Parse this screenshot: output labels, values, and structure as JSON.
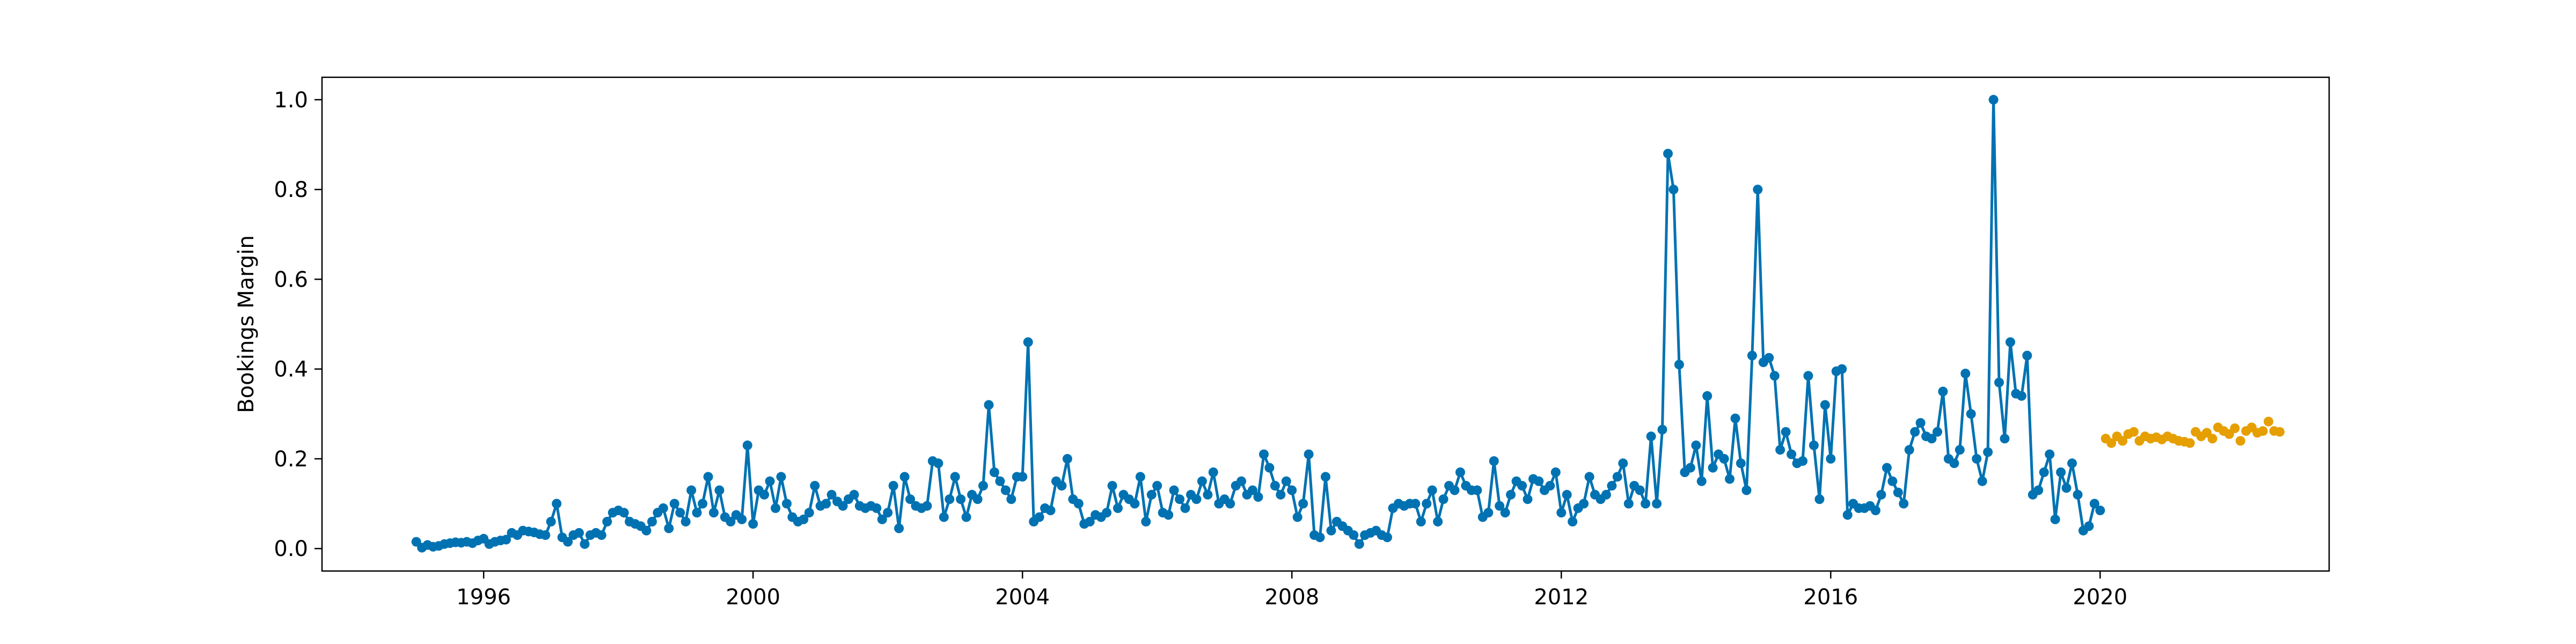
{
  "chart_data": {
    "type": "line",
    "title": "",
    "xlabel": "",
    "ylabel": "Bookings Margin",
    "xlim": [
      1993.6,
      2023.4
    ],
    "ylim": [
      -0.05,
      1.05
    ],
    "grid": false,
    "legend": "none",
    "x_ticks": [
      {
        "value": 1996,
        "label": "1996"
      },
      {
        "value": 2000,
        "label": "2000"
      },
      {
        "value": 2004,
        "label": "2004"
      },
      {
        "value": 2008,
        "label": "2008"
      },
      {
        "value": 2012,
        "label": "2012"
      },
      {
        "value": 2016,
        "label": "2016"
      },
      {
        "value": 2020,
        "label": "2020"
      }
    ],
    "y_ticks": [
      {
        "value": 0.0,
        "label": "0.0"
      },
      {
        "value": 0.2,
        "label": "0.2"
      },
      {
        "value": 0.4,
        "label": "0.4"
      },
      {
        "value": 0.6,
        "label": "0.6"
      },
      {
        "value": 0.8,
        "label": "0.8"
      },
      {
        "value": 1.0,
        "label": "1.0"
      }
    ],
    "series": [
      {
        "color": "#0072B2",
        "style": "line-with-markers",
        "x_start": 1995.0,
        "x_step_months": 1,
        "values": [
          0.015,
          0.002,
          0.008,
          0.004,
          0.006,
          0.01,
          0.012,
          0.014,
          0.013,
          0.015,
          0.012,
          0.018,
          0.022,
          0.01,
          0.015,
          0.018,
          0.02,
          0.035,
          0.03,
          0.04,
          0.038,
          0.036,
          0.032,
          0.03,
          0.06,
          0.1,
          0.025,
          0.015,
          0.03,
          0.035,
          0.01,
          0.03,
          0.035,
          0.03,
          0.06,
          0.08,
          0.085,
          0.08,
          0.06,
          0.055,
          0.05,
          0.04,
          0.06,
          0.08,
          0.09,
          0.045,
          0.1,
          0.08,
          0.06,
          0.13,
          0.08,
          0.1,
          0.16,
          0.08,
          0.13,
          0.07,
          0.06,
          0.075,
          0.065,
          0.23,
          0.055,
          0.13,
          0.12,
          0.15,
          0.09,
          0.16,
          0.1,
          0.07,
          0.06,
          0.065,
          0.08,
          0.14,
          0.095,
          0.1,
          0.12,
          0.105,
          0.095,
          0.11,
          0.12,
          0.095,
          0.09,
          0.095,
          0.09,
          0.065,
          0.08,
          0.14,
          0.045,
          0.16,
          0.11,
          0.095,
          0.09,
          0.095,
          0.195,
          0.19,
          0.07,
          0.11,
          0.16,
          0.11,
          0.07,
          0.12,
          0.11,
          0.14,
          0.32,
          0.17,
          0.15,
          0.13,
          0.11,
          0.16,
          0.16,
          0.46,
          0.06,
          0.07,
          0.09,
          0.085,
          0.15,
          0.14,
          0.2,
          0.11,
          0.1,
          0.055,
          0.06,
          0.075,
          0.07,
          0.08,
          0.14,
          0.09,
          0.12,
          0.11,
          0.1,
          0.16,
          0.06,
          0.12,
          0.14,
          0.08,
          0.075,
          0.13,
          0.11,
          0.09,
          0.12,
          0.11,
          0.15,
          0.12,
          0.17,
          0.1,
          0.11,
          0.1,
          0.14,
          0.15,
          0.12,
          0.13,
          0.115,
          0.21,
          0.18,
          0.14,
          0.12,
          0.15,
          0.13,
          0.07,
          0.1,
          0.21,
          0.03,
          0.025,
          0.16,
          0.04,
          0.06,
          0.05,
          0.04,
          0.03,
          0.01,
          0.03,
          0.035,
          0.04,
          0.03,
          0.025,
          0.09,
          0.1,
          0.095,
          0.1,
          0.1,
          0.06,
          0.1,
          0.13,
          0.06,
          0.11,
          0.14,
          0.13,
          0.17,
          0.14,
          0.13,
          0.13,
          0.07,
          0.08,
          0.195,
          0.095,
          0.08,
          0.12,
          0.15,
          0.14,
          0.11,
          0.155,
          0.15,
          0.13,
          0.14,
          0.17,
          0.08,
          0.12,
          0.06,
          0.09,
          0.1,
          0.16,
          0.12,
          0.11,
          0.12,
          0.14,
          0.16,
          0.19,
          0.1,
          0.14,
          0.13,
          0.1,
          0.25,
          0.1,
          0.265,
          0.88,
          0.8,
          0.41,
          0.17,
          0.18,
          0.23,
          0.15,
          0.34,
          0.18,
          0.21,
          0.2,
          0.155,
          0.29,
          0.19,
          0.13,
          0.43,
          0.8,
          0.415,
          0.425,
          0.385,
          0.22,
          0.26,
          0.21,
          0.19,
          0.195,
          0.385,
          0.23,
          0.11,
          0.32,
          0.2,
          0.395,
          0.4,
          0.075,
          0.1,
          0.09,
          0.09,
          0.095,
          0.085,
          0.12,
          0.18,
          0.15,
          0.125,
          0.1,
          0.22,
          0.26,
          0.28,
          0.25,
          0.245,
          0.26,
          0.35,
          0.2,
          0.19,
          0.22,
          0.39,
          0.3,
          0.2,
          0.15,
          0.215,
          1.0,
          0.37,
          0.245,
          0.46,
          0.345,
          0.34,
          0.43,
          0.12,
          0.13,
          0.17,
          0.21,
          0.065,
          0.17,
          0.135,
          0.19,
          0.12,
          0.04,
          0.05,
          0.1,
          0.085
        ]
      },
      {
        "color": "#E69F00",
        "style": "markers",
        "x_start": 2020.0833,
        "x_step_months": 1,
        "values": [
          0.245,
          0.235,
          0.25,
          0.24,
          0.255,
          0.26,
          0.24,
          0.25,
          0.245,
          0.248,
          0.243,
          0.25,
          0.245,
          0.24,
          0.238,
          0.235,
          0.26,
          0.25,
          0.258,
          0.245,
          0.27,
          0.262,
          0.255,
          0.268,
          0.24,
          0.262,
          0.27,
          0.258,
          0.262,
          0.283,
          0.262,
          0.26
        ]
      }
    ]
  }
}
